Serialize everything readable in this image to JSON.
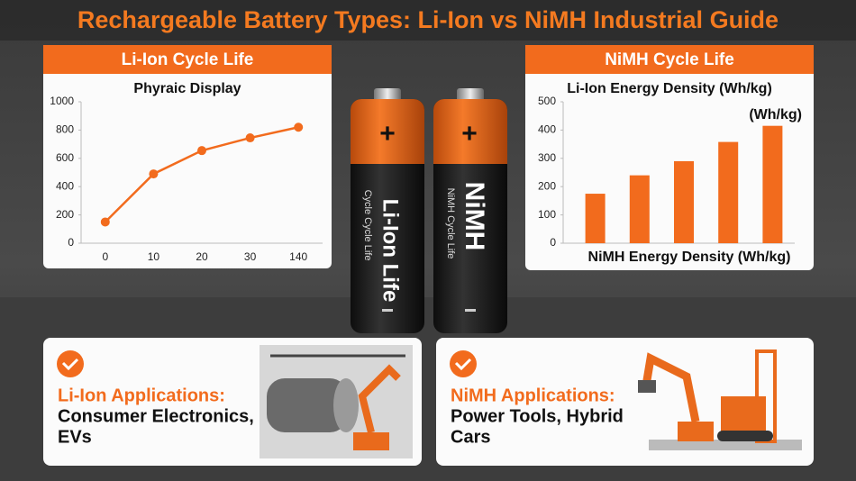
{
  "title": "Rechargeable Battery Types: Li-Ion vs NiMH Industrial Guide",
  "chart_data": [
    {
      "type": "line",
      "header": "Li-Ion Cycle Life",
      "title": "Phyraic Display",
      "categories": [
        "0",
        "10",
        "20",
        "30",
        "140"
      ],
      "values": [
        150,
        490,
        655,
        745,
        820
      ],
      "color": "#f26b1d",
      "ylim": [
        0,
        1000
      ],
      "yticks": [
        0,
        200,
        400,
        600,
        800,
        1000
      ],
      "grid": false
    },
    {
      "type": "bar",
      "header": "NiMH Cycle Life",
      "title": "Li-Ion Energy Density (Wh/kg)",
      "annotation": "(Wh/kg)",
      "x_label": "NiMH Energy Density (Wh/kg)",
      "categories": [
        null,
        null,
        null,
        null,
        null
      ],
      "values": [
        175,
        240,
        290,
        358,
        415
      ],
      "color": "#f26b1d",
      "ylim": [
        0,
        500
      ],
      "yticks": [
        0,
        100,
        200,
        300,
        400,
        500
      ],
      "grid": false
    }
  ],
  "batteries": [
    {
      "terminal": "+",
      "label": "Li-Ion Life",
      "sublabel": "Cycle Cycle Life"
    },
    {
      "terminal": "+",
      "label": "NiMH",
      "sublabel": "NiMH Cycle Life"
    }
  ],
  "cards": [
    {
      "heading": "Li-Ion Applications:",
      "line1": "Consumer Electronics,",
      "line2": "EVs"
    },
    {
      "heading": "NiMH Applications:",
      "line1": "Power Tools, Hybrid",
      "line2": "Cars"
    }
  ]
}
